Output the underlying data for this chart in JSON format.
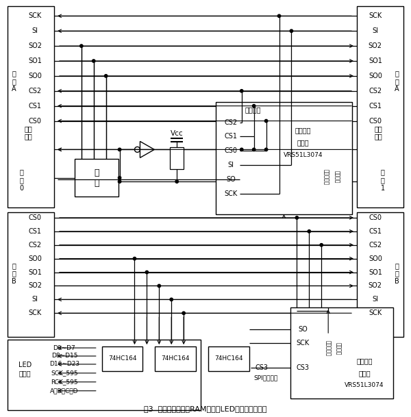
{
  "title": "图3  基于串行双端口RAM模块的LED显示屏控制系统",
  "bg_color": "#ffffff",
  "signals_portA": [
    "SCK",
    "SI",
    "SO2",
    "SO1",
    "SO0",
    "CS2",
    "CS1",
    "CS0"
  ],
  "signals_portB": [
    "CS0",
    "CS1",
    "CS2",
    "SO0",
    "SO1",
    "SO2",
    "SI",
    "SCK"
  ],
  "led_signals": [
    "D0~D7",
    "D8~D15",
    "D16~D23",
    "SCK_595",
    "RCK_595",
    "A、B、C、D"
  ],
  "hc164": [
    "74HC164",
    "74HC164",
    "74HC164"
  ],
  "mcu_ports": [
    "CS2",
    "CS1",
    "CS0",
    "SI",
    "SO",
    "SCK"
  ],
  "mcu_text": [
    "端口选择",
    "数据处理",
    "单片机",
    "VRS51L3074"
  ],
  "display_mcu_ports": [
    "SO",
    "SCK",
    "CS3"
  ],
  "display_mcu_text": [
    "数据显示",
    "单片机",
    "VRS51L3074"
  ],
  "spi_label": "SPI下载脉冲",
  "vcc_label": "Vcc",
  "xian_yu": "线\n与",
  "portA_label_L": "端\n口\nA",
  "portB_label_L": "端\n口\nB",
  "portA_label_R": "端\n口\nA",
  "portB_label_R": "端\n口\nB",
  "module0": "模\n块\n0",
  "module1": "模\n块\n1",
  "port_select_L": "端口\n选择",
  "port_select_R": "端口\n选择",
  "vert_disp_ctrl": "显示控制器",
  "vert_disp_status": "显示状态"
}
